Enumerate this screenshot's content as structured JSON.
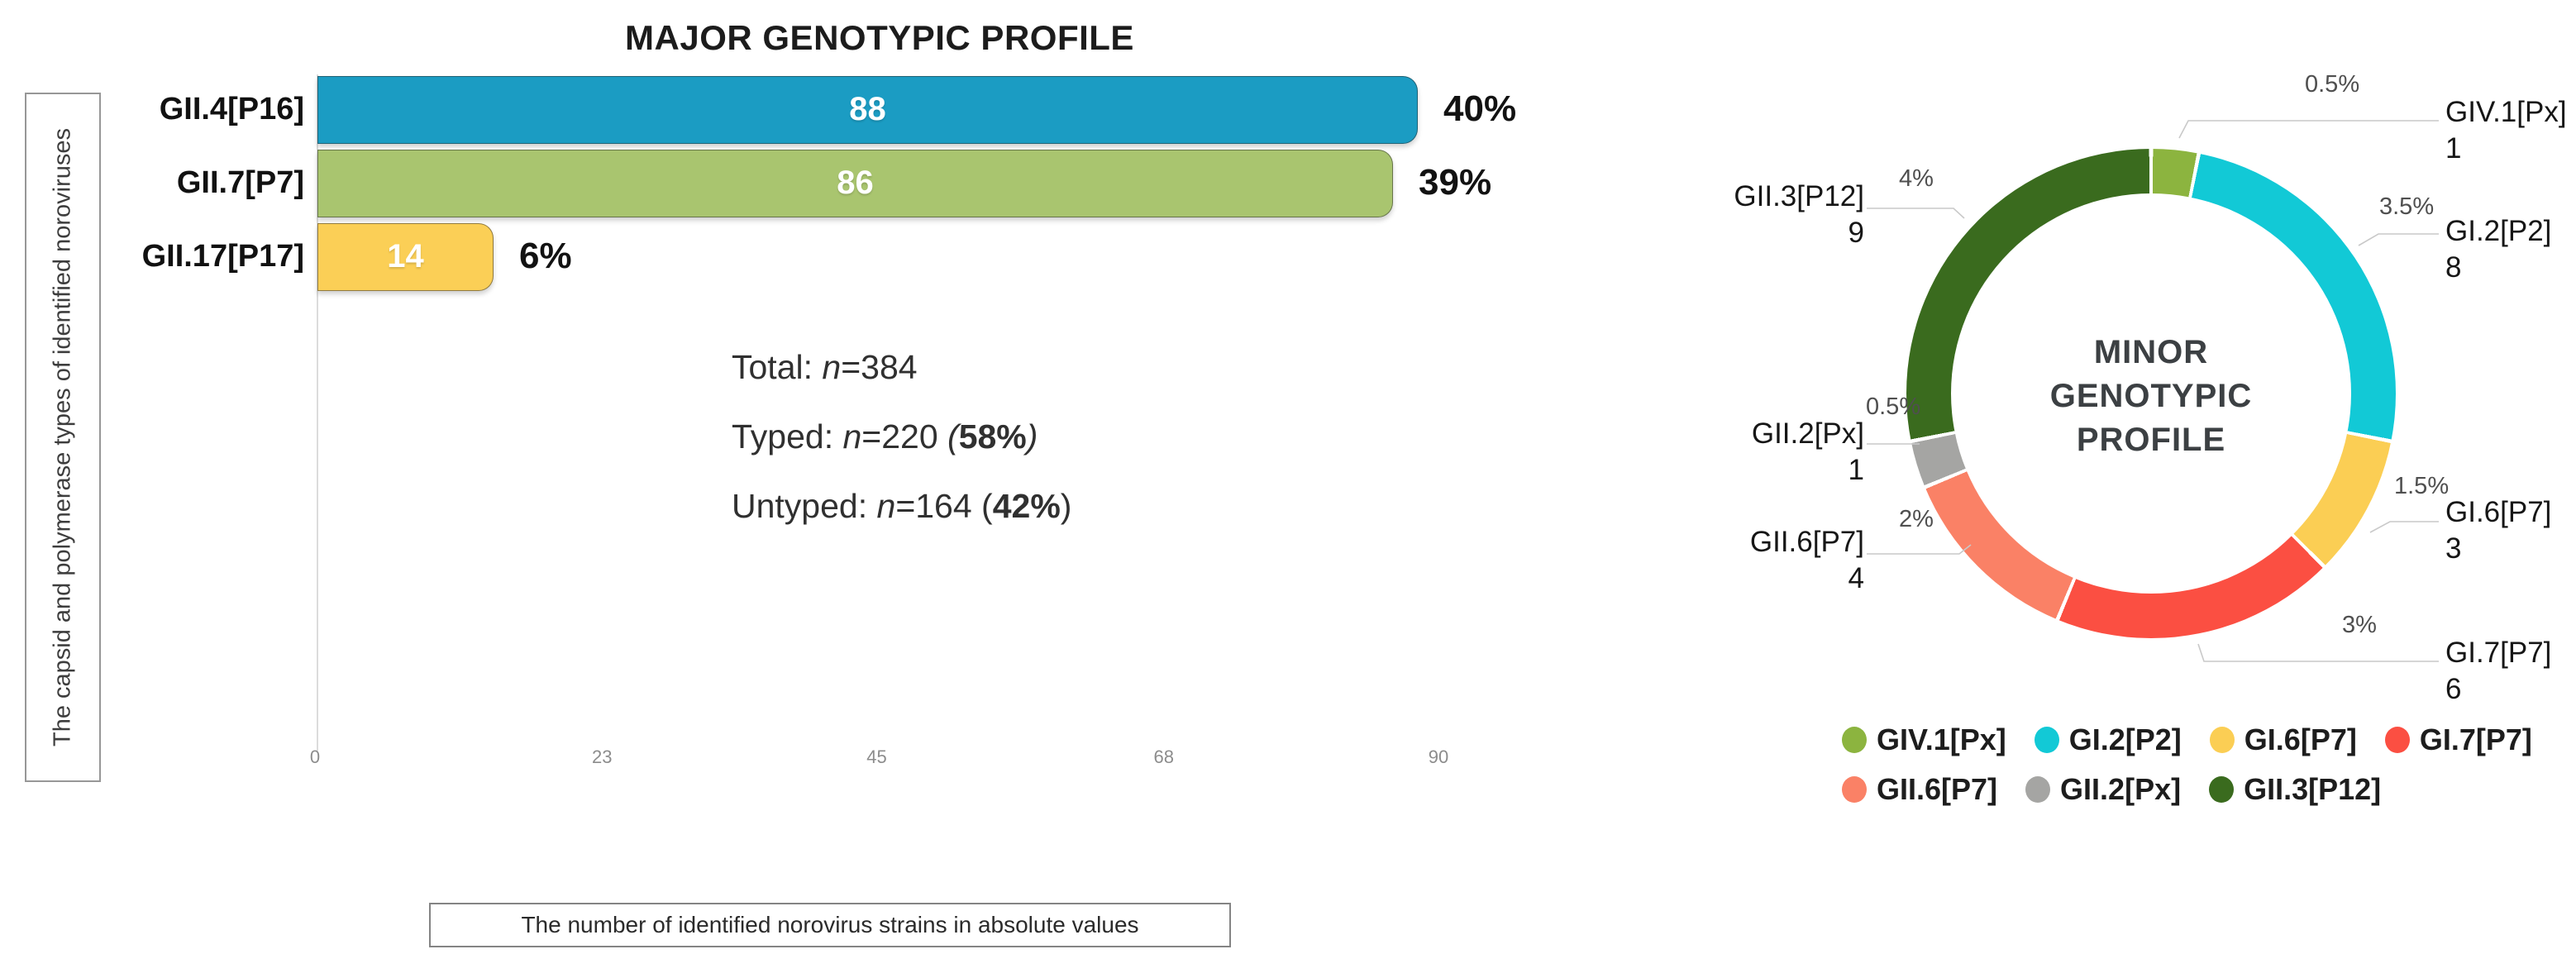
{
  "chart_data": [
    {
      "type": "bar",
      "orientation": "horizontal",
      "title": "MAJOR GENOTYPIC PROFILE",
      "categories": [
        "GII.4[P16]",
        "GII.7[P7]",
        "GII.17[P17]"
      ],
      "values": [
        88,
        86,
        14
      ],
      "value_labels": [
        "88",
        "86",
        "14"
      ],
      "pct_labels": [
        "40%",
        "39%",
        "6%"
      ],
      "bar_colors": [
        "#1B9CC3",
        "#A9C56F",
        "#FBCF56"
      ],
      "xlim": [
        0,
        90
      ],
      "xticks": [
        "0",
        "23",
        "45",
        "68",
        "90"
      ],
      "grid": "off",
      "ylabel": "The capsid and polymerase types of identified noroviruses",
      "xlabel": "The number of identified norovirus strains in absolute values",
      "stats": {
        "total_label": "Total: ",
        "n": "n",
        "total_rest": "=384",
        "typed_label": "Typed: ",
        "typed_rest": "=220 ",
        "typed_open": "(",
        "typed_pct": "58%",
        "typed_close": ")",
        "untyped_label": "Untyped: ",
        "untyped_rest": "=164 (",
        "untyped_pct": "42%",
        "untyped_close": ")"
      }
    },
    {
      "type": "pie",
      "donut": true,
      "center_title": [
        "MINOR",
        "GENOTYPIC",
        "PROFILE"
      ],
      "slices": [
        {
          "label": "GIV.1[Px]",
          "value": 1,
          "pct": "0.5%",
          "color": "#8CB43F"
        },
        {
          "label": "GI.2[P2]",
          "value": 8,
          "pct": "3.5%",
          "color": "#12C9D6"
        },
        {
          "label": "GI.6[P7]",
          "value": 3,
          "pct": "1.5%",
          "color": "#FBCE54"
        },
        {
          "label": "GI.7[P7]",
          "value": 6,
          "pct": "3%",
          "color": "#FB4F42"
        },
        {
          "label": "GII.6[P7]",
          "value": 4,
          "pct": "2%",
          "color": "#FA8166"
        },
        {
          "label": "GII.2[Px]",
          "value": 1,
          "pct": "0.5%",
          "color": "#A5A5A3"
        },
        {
          "label": "GII.3[P12]",
          "value": 9,
          "pct": "4%",
          "color": "#3A6B1E"
        }
      ],
      "legend_rows": [
        [
          0,
          1,
          2,
          3
        ],
        [
          4,
          5,
          6
        ]
      ],
      "legend_position": "bottom"
    }
  ]
}
